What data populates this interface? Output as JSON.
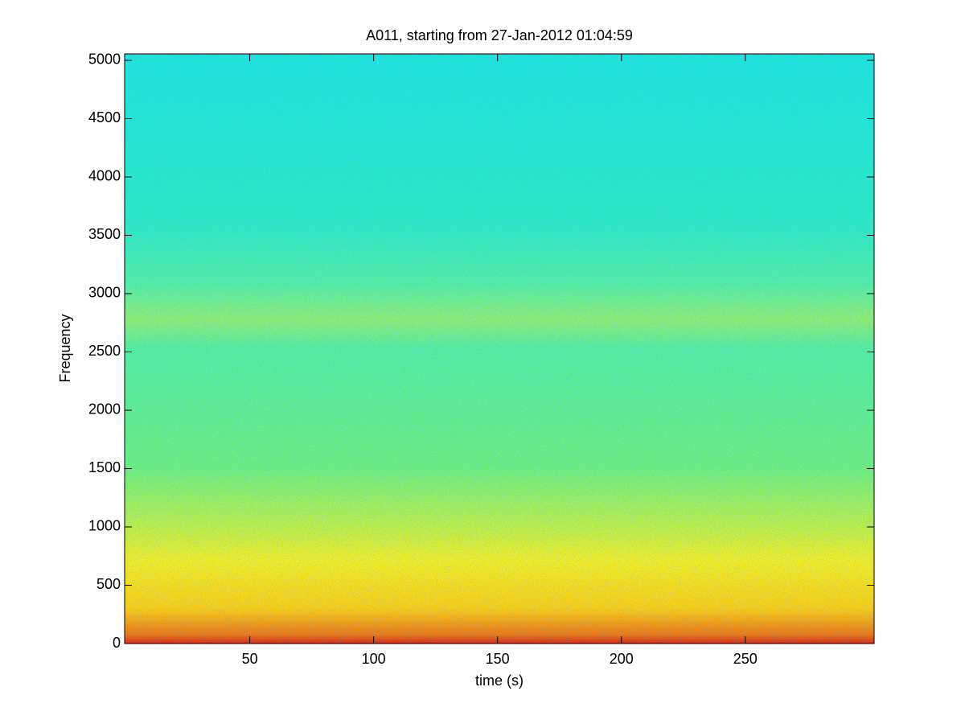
{
  "chart_data": {
    "type": "spectrogram",
    "title": "A011, starting from 27-Jan-2012 01:04:59",
    "x_label": "time (s)",
    "y_label": "Frequency",
    "xlim": [
      -0.5,
      302
    ],
    "xticks": [
      50,
      100,
      150,
      200,
      250
    ],
    "ylim": [
      0,
      5055
    ],
    "yticks": [
      0,
      500,
      1000,
      1500,
      2000,
      2500,
      3000,
      3500,
      4000,
      4500,
      5000
    ],
    "grid": false
  }
}
